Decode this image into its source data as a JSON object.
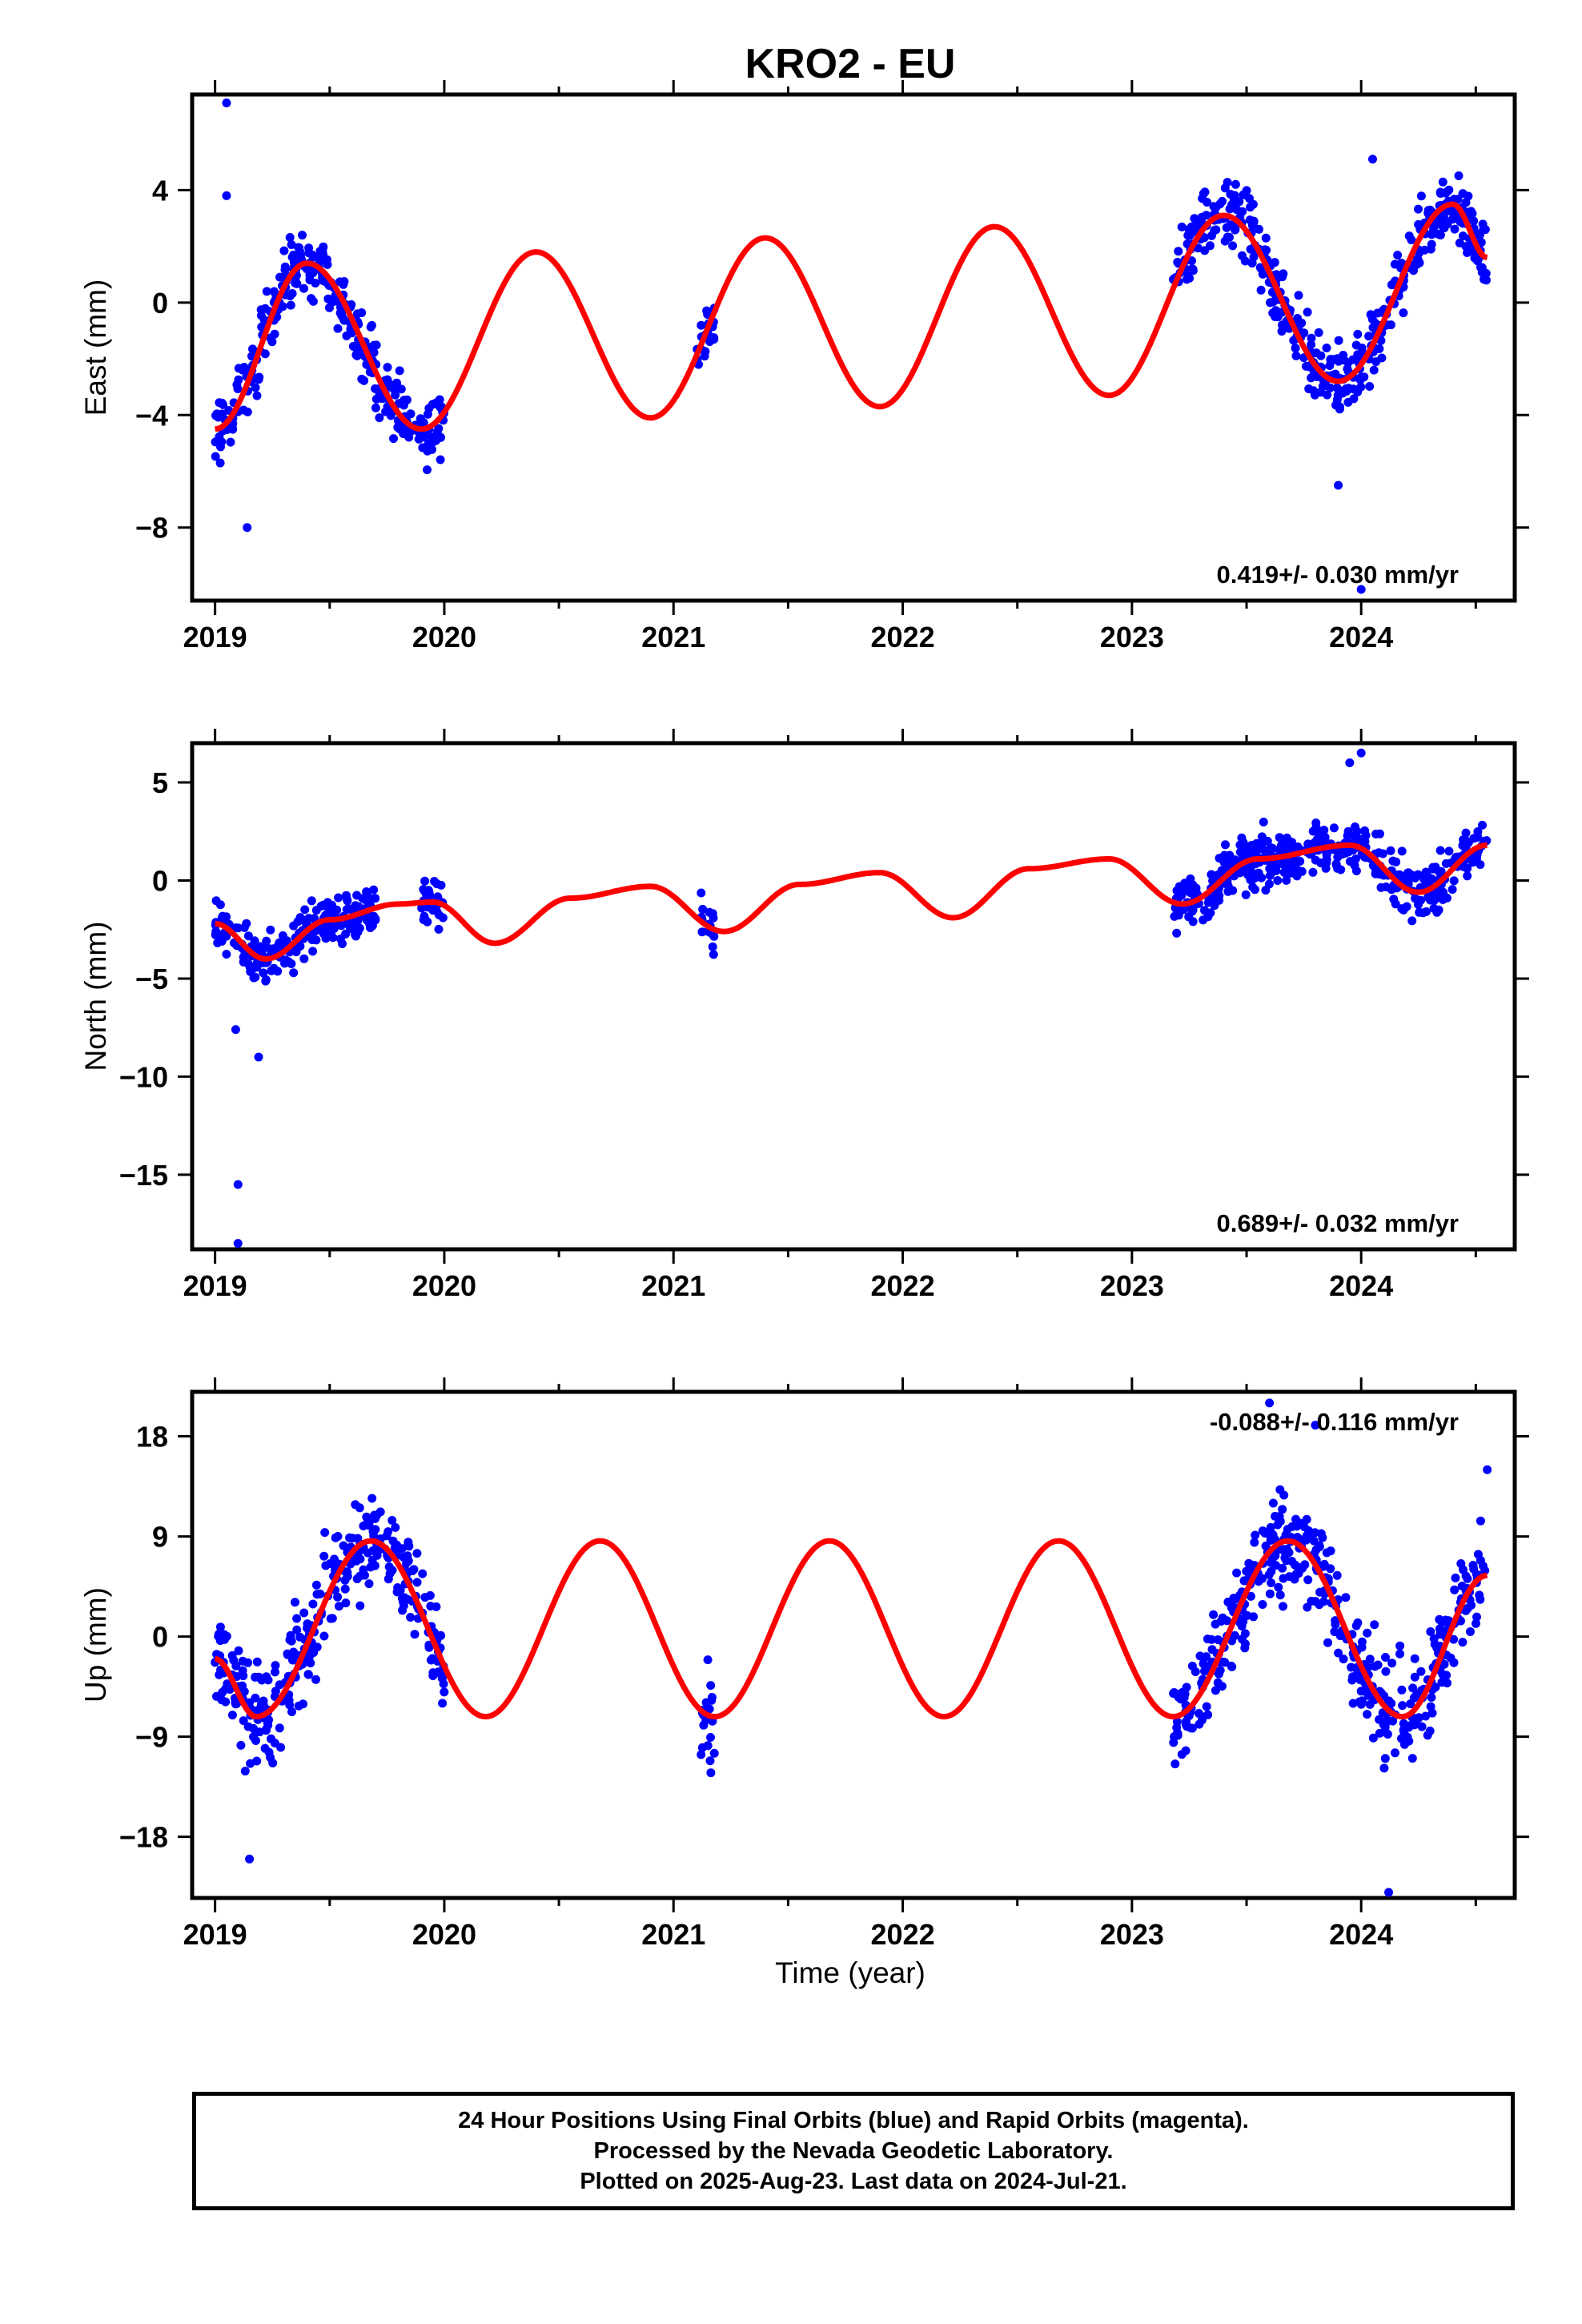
{
  "title": "KRO2 - EU",
  "colors": {
    "data": "#0000ff",
    "model": "#ff0000",
    "frame": "#000000"
  },
  "xaxis": {
    "label": "Time (year)",
    "ticks": [
      2019,
      2020,
      2021,
      2022,
      2023,
      2024
    ],
    "range": [
      2018.9,
      2024.67
    ]
  },
  "footer": {
    "line1": "24 Hour Positions Using Final Orbits (blue) and Rapid Orbits (magenta).",
    "line2": "Processed by the Nevada Geodetic Laboratory.",
    "line3": "Plotted on 2025-Aug-23. Last data on 2024-Jul-21."
  },
  "chart_data": [
    {
      "type": "scatter",
      "component": "east",
      "ylabel": "East (mm)",
      "ylim": [
        -10.6,
        7.4
      ],
      "yticks": [
        -8,
        -4,
        0,
        4
      ],
      "ytick_labels": [
        "−8",
        "−4",
        "0",
        "4"
      ],
      "velocity_label": "0.419+/- 0.030 mm/yr",
      "velocity_position": "bottom-right",
      "series": [
        {
          "style": "points",
          "segments": [
            {
              "t": [
                2019.0,
                2019.7
              ],
              "y": [
                -4.4,
                -2.6
              ]
            },
            {
              "t": [
                2019.7,
                2020.0
              ],
              "y": [
                -4.3,
                -4.6
              ]
            },
            {
              "t": [
                2021.1,
                2021.18
              ],
              "y": [
                -1.8,
                -2.0
              ]
            },
            {
              "t": [
                2023.18,
                2024.55
              ],
              "y": [
                0.0,
                1.8
              ]
            }
          ],
          "spread": 1.2,
          "outliers": [
            {
              "t": 2019.05,
              "y": 7.1
            },
            {
              "t": 2019.05,
              "y": 3.8
            },
            {
              "t": 2019.14,
              "y": -8.0
            },
            {
              "t": 2024.0,
              "y": -10.2
            },
            {
              "t": 2023.9,
              "y": -6.5
            },
            {
              "t": 2024.05,
              "y": 5.1
            }
          ]
        },
        {
          "style": "line",
          "t": [
            2019.0,
            2019.4,
            2019.9,
            2020.4,
            2020.9,
            2021.4,
            2021.9,
            2022.4,
            2022.9,
            2023.4,
            2023.9,
            2024.4,
            2024.55
          ],
          "y": [
            -4.5,
            1.4,
            -4.5,
            1.8,
            -4.1,
            2.3,
            -3.7,
            2.7,
            -3.3,
            3.1,
            -2.8,
            3.5,
            1.6
          ]
        }
      ]
    },
    {
      "type": "scatter",
      "component": "north",
      "ylabel": "North (mm)",
      "ylim": [
        -18.8,
        7.0
      ],
      "yticks": [
        -15,
        -10,
        -5,
        0,
        5
      ],
      "ytick_labels": [
        "−15",
        "−10",
        "−5",
        "0",
        "5"
      ],
      "velocity_label": "0.689+/- 0.032 mm/yr",
      "velocity_position": "bottom-right",
      "series": [
        {
          "style": "points",
          "segments": [
            {
              "t": [
                2019.0,
                2019.7
              ],
              "y": [
                -2.5,
                -1.5
              ]
            },
            {
              "t": [
                2019.9,
                2020.0
              ],
              "y": [
                -0.5,
                0.5
              ]
            },
            {
              "t": [
                2021.12,
                2021.18
              ],
              "y": [
                -4.5,
                -4.0
              ]
            },
            {
              "t": [
                2023.18,
                2024.55
              ],
              "y": [
                -1.0,
                1.5
              ]
            }
          ],
          "spread": 1.3,
          "outliers": [
            {
              "t": 2019.1,
              "y": -15.5
            },
            {
              "t": 2019.1,
              "y": -18.5
            },
            {
              "t": 2019.19,
              "y": -9.0
            },
            {
              "t": 2019.09,
              "y": -7.6
            },
            {
              "t": 2024.0,
              "y": 6.5
            },
            {
              "t": 2023.95,
              "y": 6.0
            }
          ]
        },
        {
          "style": "line",
          "t": [
            2019.0,
            2019.22,
            2019.5,
            2019.8,
            2019.95,
            2020.22,
            2020.55,
            2020.9,
            2021.22,
            2021.55,
            2021.9,
            2022.22,
            2022.55,
            2022.9,
            2023.22,
            2023.55,
            2023.95,
            2024.25,
            2024.55
          ],
          "y": [
            -2.2,
            -4.0,
            -2.0,
            -1.2,
            -1.1,
            -3.2,
            -0.9,
            -0.3,
            -2.6,
            -0.2,
            0.4,
            -1.9,
            0.6,
            1.1,
            -1.2,
            1.1,
            1.8,
            -0.6,
            1.8
          ]
        }
      ]
    },
    {
      "type": "scatter",
      "component": "up",
      "ylabel": "Up (mm)",
      "ylim": [
        -23.5,
        22.0
      ],
      "yticks": [
        -18,
        -9,
        0,
        9,
        18
      ],
      "ytick_labels": [
        "−18",
        "−9",
        "0",
        "9",
        "18"
      ],
      "velocity_label": "-0.088+/- 0.116 mm/yr",
      "velocity_position": "top-right",
      "series": [
        {
          "style": "points",
          "segments": [
            {
              "t": [
                2019.0,
                2019.7
              ],
              "y": [
                -6.0,
                6.0
              ]
            },
            {
              "t": [
                2019.7,
                2020.0
              ],
              "y": [
                6.0,
                4.0
              ]
            },
            {
              "t": [
                2021.12,
                2021.18
              ],
              "y": [
                -11.0,
                -12.0
              ]
            },
            {
              "t": [
                2023.18,
                2024.55
              ],
              "y": [
                -8.0,
                3.0
              ]
            }
          ],
          "spread": 4.5,
          "outliers": [
            {
              "t": 2019.15,
              "y": -20.0
            },
            {
              "t": 2023.6,
              "y": 21.0
            },
            {
              "t": 2023.8,
              "y": 19.0
            },
            {
              "t": 2024.12,
              "y": -23.0
            },
            {
              "t": 2024.55,
              "y": 15.0
            }
          ]
        },
        {
          "style": "line",
          "t": [
            2019.0,
            2019.18,
            2019.68,
            2020.18,
            2020.68,
            2021.18,
            2021.68,
            2022.18,
            2022.68,
            2023.18,
            2023.68,
            2024.18,
            2024.55
          ],
          "y": [
            -2.0,
            -7.2,
            8.6,
            -7.2,
            8.6,
            -7.2,
            8.6,
            -7.2,
            8.6,
            -7.2,
            8.6,
            -7.2,
            5.5
          ]
        }
      ]
    }
  ]
}
